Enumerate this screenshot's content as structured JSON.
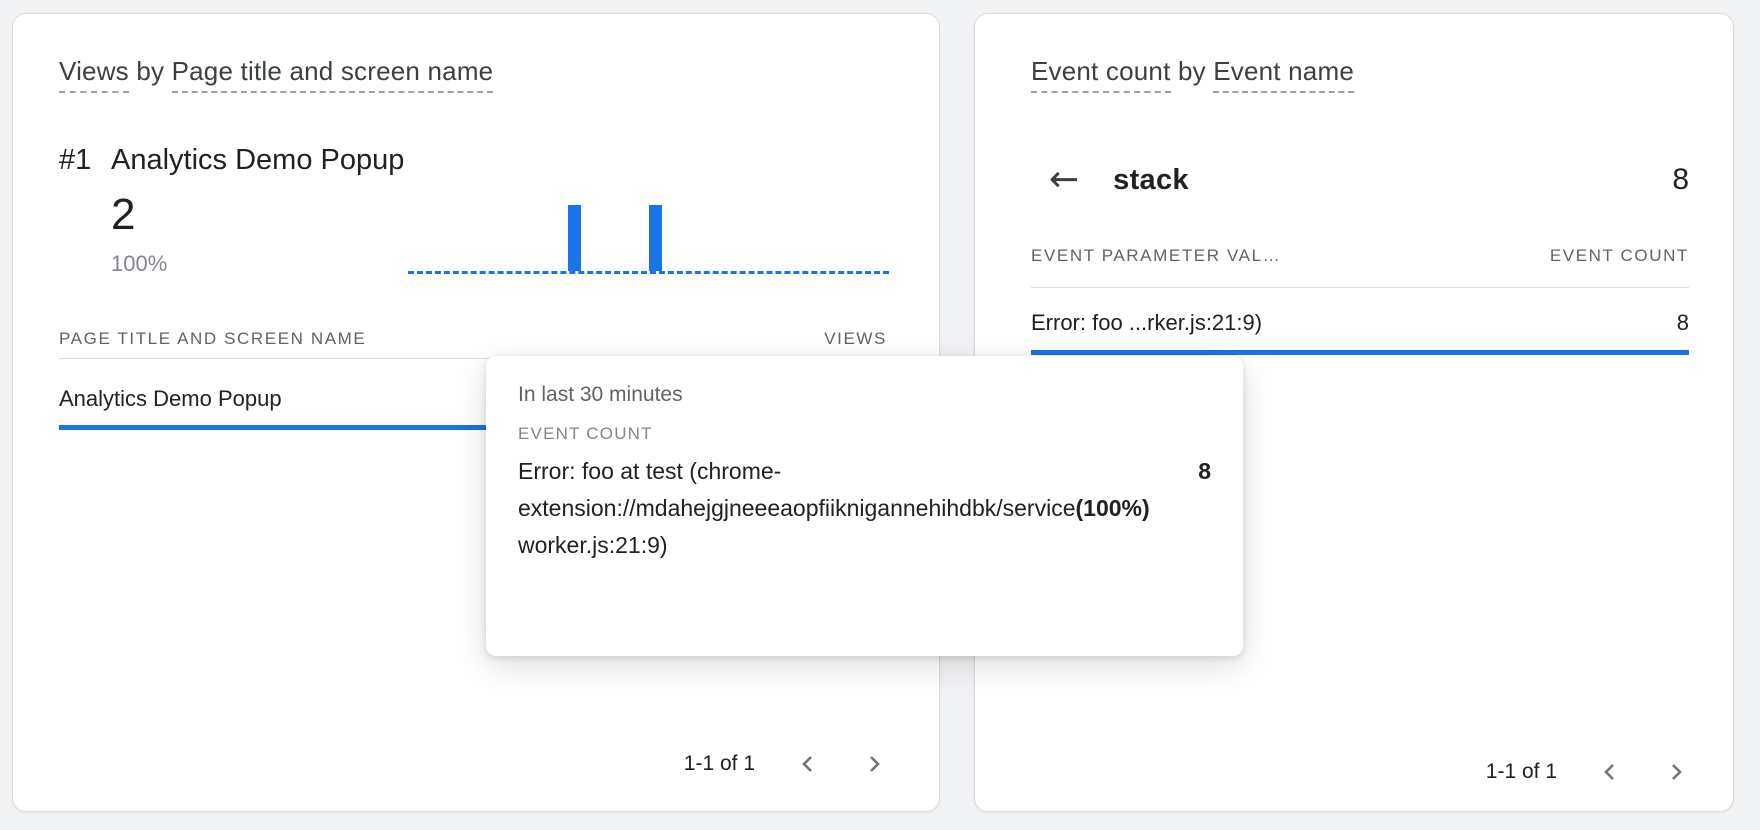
{
  "left_card": {
    "title_metric": "Views",
    "title_connector": " by ",
    "title_dimension": "Page title and screen name",
    "rank_label": "#1",
    "top_item_name": "Analytics Demo Popup",
    "metric_value": "2",
    "metric_percent": "100%",
    "table": {
      "col_dimension": "PAGE TITLE AND SCREEN NAME",
      "col_metric": "VIEWS",
      "rows": [
        {
          "label": "Analytics Demo Popup"
        }
      ]
    },
    "pagination_label": "1-1 of 1"
  },
  "right_card": {
    "title_metric": "Event count",
    "title_connector": " by ",
    "title_dimension": "Event name",
    "drill_event_name": "stack",
    "drill_event_count": "8",
    "table": {
      "col_dimension": "EVENT PARAMETER VAL…",
      "col_metric": "EVENT COUNT",
      "rows": [
        {
          "label": "Error: foo ...rker.js:21:9)",
          "value": "8"
        }
      ]
    },
    "pagination_label": "1-1 of 1"
  },
  "tooltip": {
    "period": "In last 30 minutes",
    "metric_label": "EVENT COUNT",
    "lines": [
      "Error: foo at test (chrome-",
      "extension://mdahejgjneeeaopfiiknigannehihdbk/service",
      "worker.js:21:9)"
    ],
    "value": "8",
    "percent": "(100%)"
  },
  "icons": {
    "back": "left-arrow-icon",
    "prev_page": "chevron-left-icon",
    "next_page": "chevron-right-icon"
  },
  "colors": {
    "accent_blue": "#1a73e8",
    "text_primary": "#202124",
    "text_secondary": "#5f6368",
    "text_tertiary": "#80868b",
    "divider": "#dadce0",
    "chevron_gray": "#757575",
    "card_background": "#ffffff",
    "page_background": "#f2f3f5"
  },
  "chart_data": {
    "type": "bar",
    "title": "Views sparkline (last 30 minutes)",
    "x_range": "last 30 minutes",
    "max": 1,
    "values": [
      0,
      0,
      0,
      0,
      0,
      0,
      0,
      0,
      0,
      0,
      1,
      0,
      0,
      0,
      0,
      1,
      0,
      0,
      0,
      0,
      0,
      0,
      0,
      0,
      0,
      0,
      0,
      0,
      0,
      0
    ]
  }
}
